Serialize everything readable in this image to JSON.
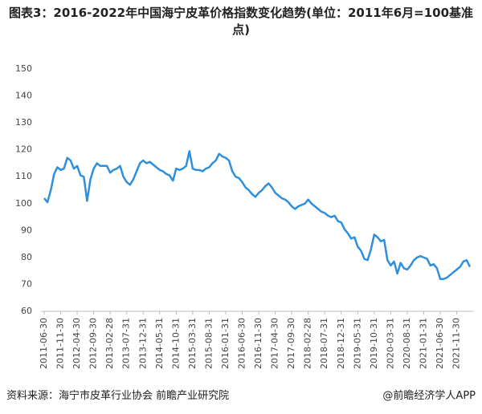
{
  "chart_data": {
    "type": "line",
    "title": "图表3：2016-2022年中国海宁皮革价格指数变化趋势(单位：2011年6月=100基准点)",
    "source": "资料来源：海宁市皮革行业协会 前瞻产业研究院",
    "credit": "@前瞻经济学人APP",
    "categories": [
      "2011-06-30",
      null,
      null,
      null,
      null,
      "2011-11-30",
      null,
      null,
      null,
      null,
      "2012-04-30",
      null,
      null,
      null,
      null,
      "2012-09-30",
      null,
      null,
      null,
      null,
      "2013-02-28",
      null,
      null,
      null,
      null,
      "2013-07-31",
      null,
      null,
      null,
      null,
      "2013-12-31",
      null,
      null,
      null,
      null,
      "2014-05-31",
      null,
      null,
      null,
      null,
      "2014-10-31",
      null,
      null,
      null,
      null,
      "2015-03-31",
      null,
      null,
      null,
      null,
      "2015-08-31",
      null,
      null,
      null,
      null,
      "2016-01-31",
      null,
      null,
      null,
      null,
      "2016-06-30",
      null,
      null,
      null,
      null,
      "2016-11-30",
      null,
      null,
      null,
      null,
      "2017-04-30",
      null,
      null,
      null,
      null,
      "2017-09-30",
      null,
      null,
      null,
      null,
      "2018-02-28",
      null,
      null,
      null,
      null,
      "2018-07-31",
      null,
      null,
      null,
      null,
      "2018-12-31",
      null,
      null,
      null,
      null,
      "2019-05-31",
      null,
      null,
      null,
      null,
      "2019-10-31",
      null,
      null,
      null,
      null,
      "2020-03-31",
      null,
      null,
      null,
      null,
      "2020-08-31",
      null,
      null,
      null,
      null,
      "2021-01-31",
      null,
      null,
      null,
      null,
      "2021-06-30",
      null,
      null,
      null,
      null,
      "2021-11-30",
      null,
      null,
      null,
      null
    ],
    "values": [
      102,
      100.5,
      105,
      111,
      113.5,
      112.5,
      113,
      117,
      116,
      113,
      114,
      110.5,
      110,
      101,
      109,
      113,
      115,
      114,
      114,
      114,
      111.5,
      112.5,
      113,
      114,
      110,
      108,
      107,
      109,
      112,
      115,
      116,
      115,
      115.5,
      114.5,
      113.5,
      112.5,
      112,
      111,
      110.5,
      108.5,
      113,
      112.5,
      113,
      114,
      119.5,
      113,
      112.5,
      112.5,
      112,
      113,
      113.5,
      115,
      116,
      118.5,
      117.5,
      117,
      116,
      112,
      110,
      109.5,
      108,
      106,
      105,
      103.5,
      102.5,
      104,
      105,
      106.5,
      107.5,
      106,
      104,
      103,
      102,
      101.5,
      100.5,
      99,
      98,
      99,
      99.5,
      100,
      101.5,
      100,
      99,
      98,
      97,
      96.5,
      95.5,
      95,
      95.5,
      93.5,
      93,
      90.5,
      89,
      87,
      87.5,
      84,
      82.5,
      79.5,
      79,
      83,
      88.5,
      87.5,
      86,
      86.5,
      79,
      77,
      78.5,
      74,
      78,
      76,
      75.5,
      77,
      79,
      80,
      80.5,
      80,
      79.5,
      77,
      77.5,
      76,
      72,
      72,
      72.5,
      73.5,
      74.5,
      75.5,
      76.5,
      78.5,
      79,
      76.5
    ],
    "color": "#2f8fdc",
    "ylim": [
      60,
      150
    ],
    "yticks": [
      60,
      70,
      80,
      90,
      100,
      110,
      120,
      130,
      140,
      150
    ],
    "grid": false
  }
}
